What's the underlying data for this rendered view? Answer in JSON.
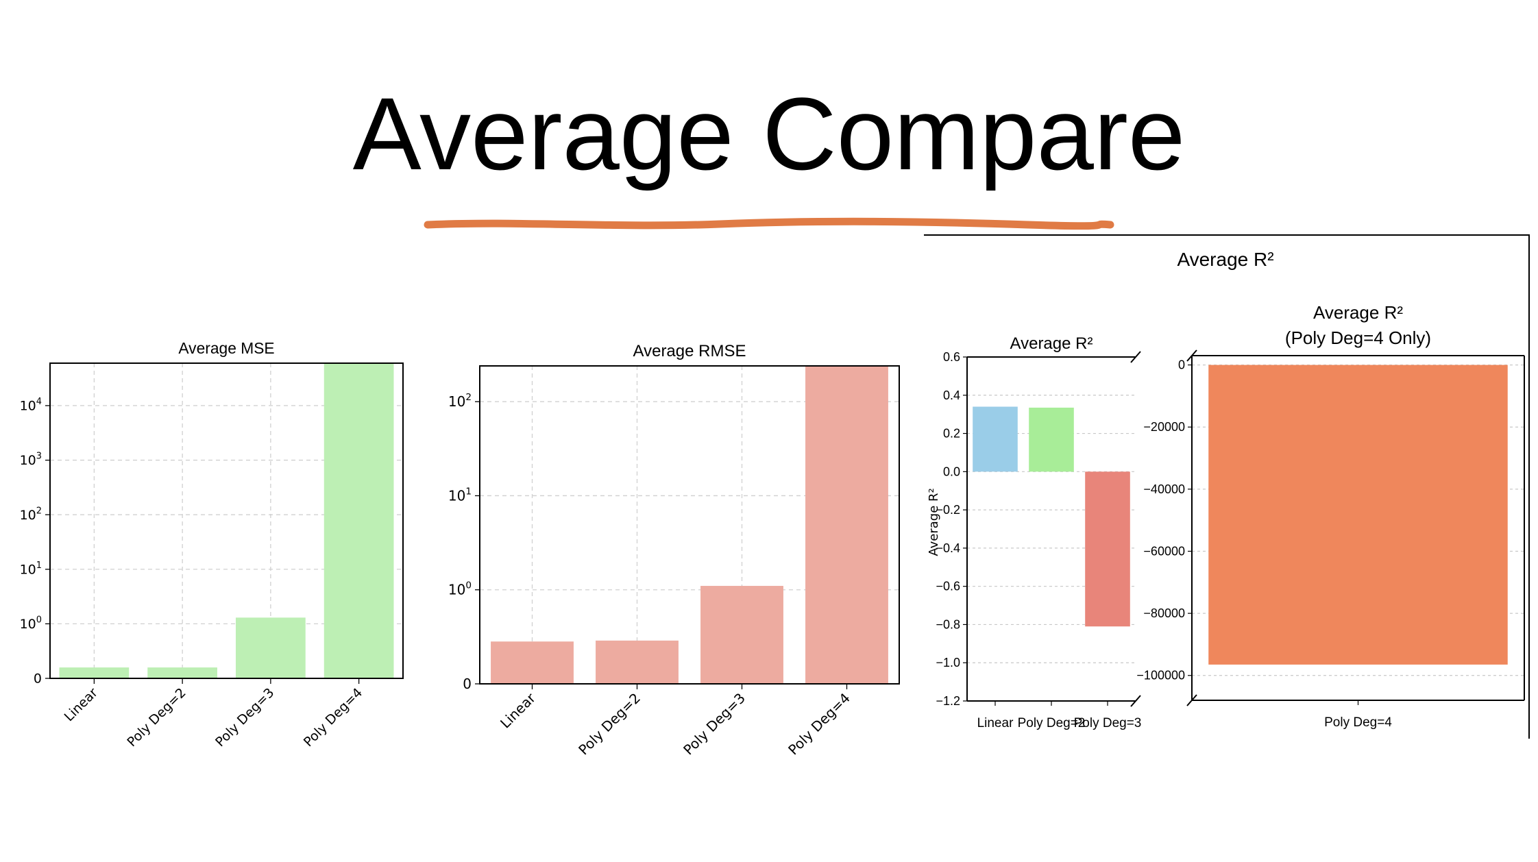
{
  "slide": {
    "title": "Average Compare",
    "underline_color": "#E07B45"
  },
  "chart_data": [
    {
      "type": "bar",
      "title": "Average MSE",
      "yscale": "symlog",
      "categories": [
        "Linear",
        "Poly Deg=2",
        "Poly Deg=3",
        "Poly Deg=4"
      ],
      "values": [
        0.2,
        0.2,
        1.3,
        60000
      ],
      "yticks": [
        "0",
        "10^0",
        "10^1",
        "10^2",
        "10^3",
        "10^4"
      ],
      "color": "#BDEFB4",
      "grid": true
    },
    {
      "type": "bar",
      "title": "Average RMSE",
      "yscale": "symlog",
      "categories": [
        "Linear",
        "Poly Deg=2",
        "Poly Deg=3",
        "Poly Deg=4"
      ],
      "values": [
        0.45,
        0.46,
        1.1,
        240
      ],
      "yticks": [
        "0",
        "10^0",
        "10^1",
        "10^2"
      ],
      "color": "#EDABA0",
      "grid": true
    },
    {
      "type": "bar",
      "title": "Average R²",
      "suptitle": "Average R²",
      "ylabel": "Average R²",
      "categories": [
        "Linear",
        "Poly Deg=2",
        "Poly Deg=3"
      ],
      "values": [
        0.34,
        0.335,
        -0.81
      ],
      "colors": [
        "#9ACDE8",
        "#A8ED98",
        "#E8857A"
      ],
      "ylim": [
        -1.2,
        0.6
      ],
      "yticks": [
        "0.6",
        "0.4",
        "0.2",
        "0.0",
        "−0.2",
        "−0.4",
        "−0.6",
        "−0.8",
        "−1.0",
        "−1.2"
      ],
      "grid": true
    },
    {
      "type": "bar",
      "title": "Average R²",
      "subtitle": "(Poly Deg=4 Only)",
      "categories": [
        "Poly Deg=4"
      ],
      "values": [
        -96500
      ],
      "color": "#EF875C",
      "ylim": [
        -108000,
        3000
      ],
      "yticks": [
        "0",
        "−20000",
        "−40000",
        "−60000",
        "−80000",
        "−100000"
      ],
      "grid": true
    }
  ]
}
